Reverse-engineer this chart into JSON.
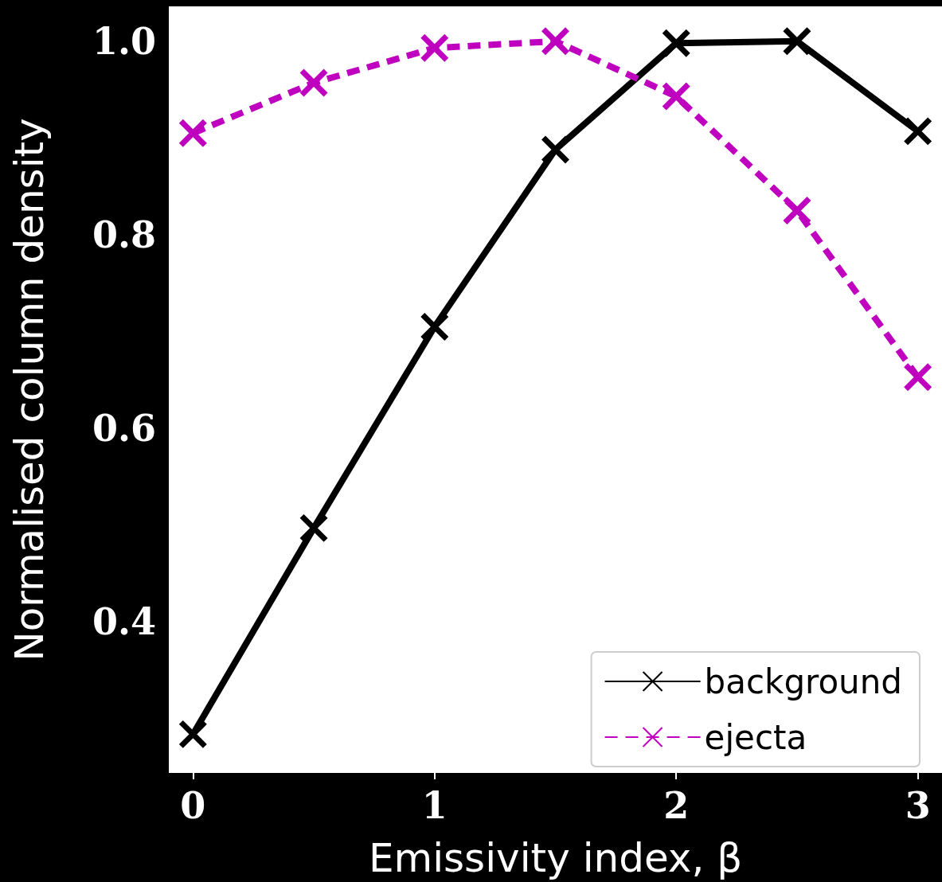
{
  "chart_data": {
    "type": "line",
    "xlabel": "Emissivity index, β",
    "ylabel": "Normalised column density",
    "x": [
      0,
      0.5,
      1,
      1.5,
      2,
      2.5,
      3
    ],
    "series": [
      {
        "name": "background",
        "color": "#000000",
        "line_style": "solid",
        "values": [
          0.284,
          0.497,
          0.705,
          0.888,
          0.998,
          1.0,
          0.907
        ]
      },
      {
        "name": "ejecta",
        "color": "#bf00bf",
        "line_style": "dashed",
        "values": [
          0.905,
          0.957,
          0.993,
          1.0,
          0.943,
          0.825,
          0.653
        ]
      }
    ],
    "xlim": [
      -0.1,
      3.1
    ],
    "xticks": [
      0,
      1,
      2,
      3
    ],
    "ylim": [
      0.244,
      1.036
    ],
    "yticks": [
      {
        "value": 0.4,
        "label": "0.4"
      },
      {
        "value": 0.6,
        "label": "0.6"
      },
      {
        "value": 0.8,
        "label": "0.8"
      },
      {
        "value": 1,
        "label": "1.0"
      }
    ],
    "grid": false,
    "legend": "bottom right",
    "marker": "cross"
  }
}
